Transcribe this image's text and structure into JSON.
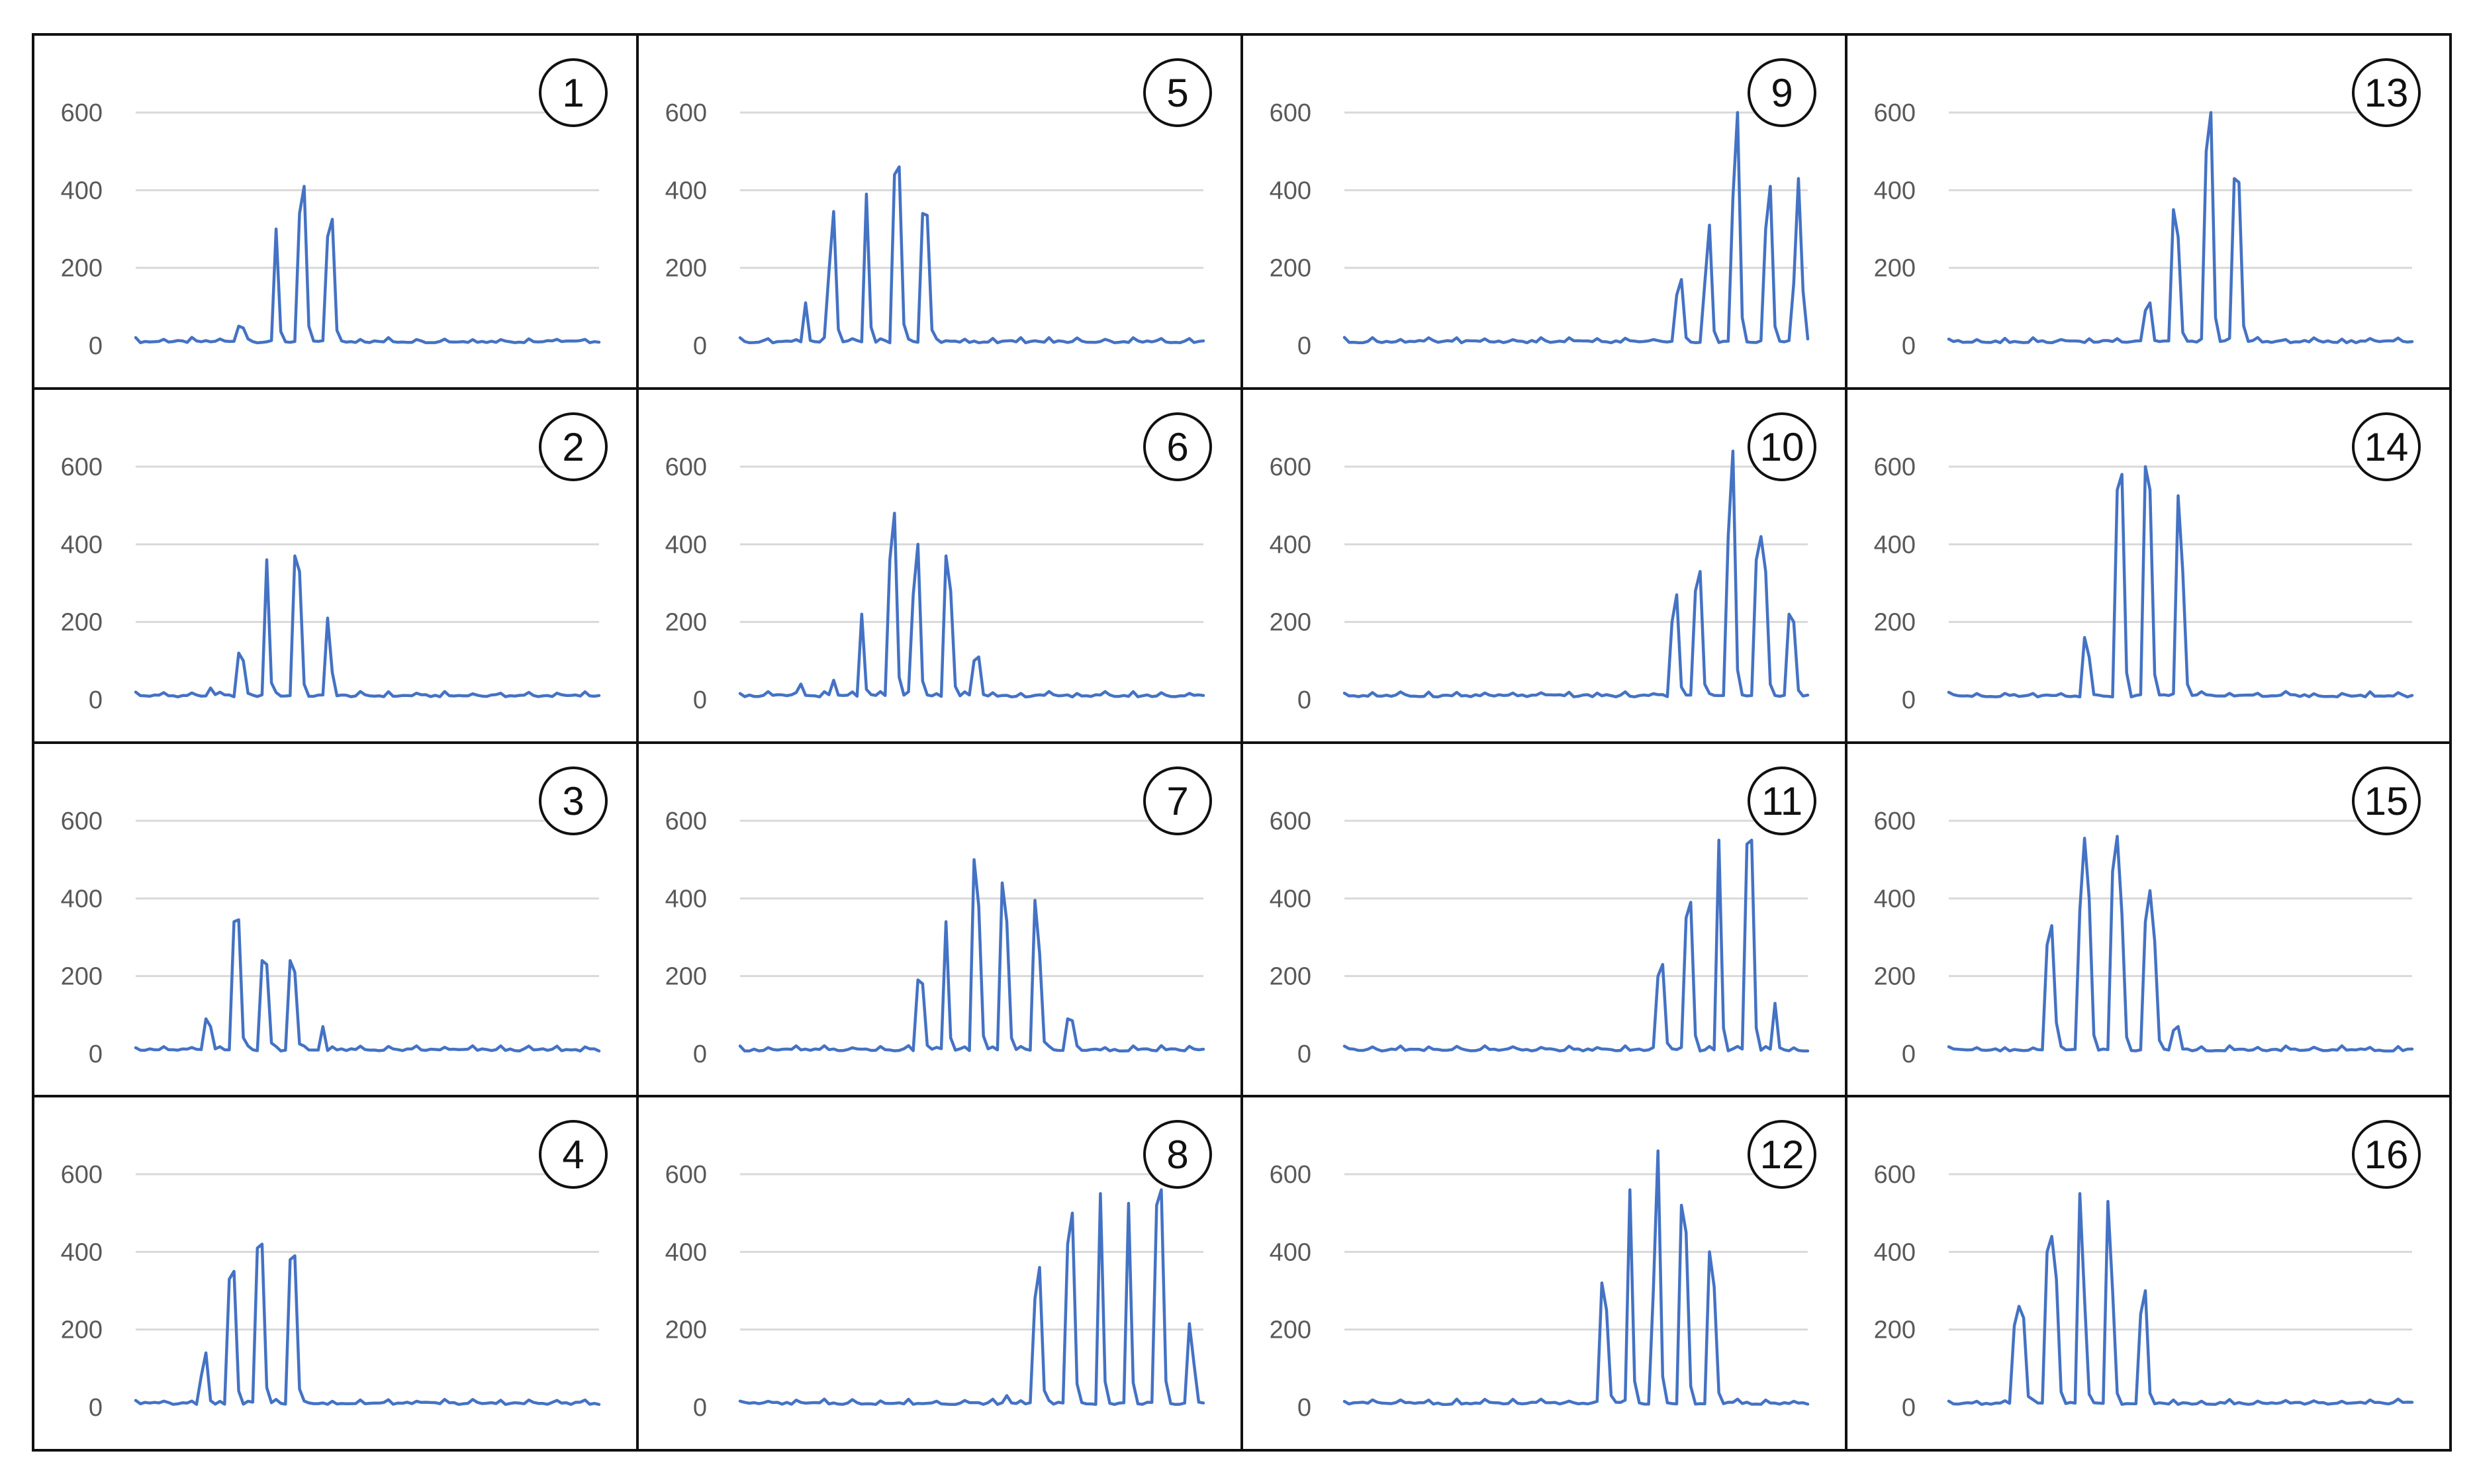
{
  "chart_data": {
    "type": "line",
    "layout": "4x4 small multiples, column-major panel numbering",
    "line_color": "#4472c4",
    "grid": true,
    "legend": "none",
    "x_samples": 100,
    "panels": [
      {
        "label": "1",
        "ylim": [
          0,
          700
        ],
        "yticks": [
          "0",
          "200",
          "400",
          "600"
        ],
        "baseline": 10,
        "peaks": [
          [
            22,
            50
          ],
          [
            23,
            45
          ],
          [
            30,
            300
          ],
          [
            35,
            340
          ],
          [
            36,
            410
          ],
          [
            41,
            280
          ],
          [
            42,
            325
          ]
        ]
      },
      {
        "label": "2",
        "ylim": [
          0,
          700
        ],
        "yticks": [
          "0",
          "200",
          "400",
          "600"
        ],
        "baseline": 10,
        "peaks": [
          [
            16,
            30
          ],
          [
            22,
            120
          ],
          [
            23,
            100
          ],
          [
            28,
            360
          ],
          [
            34,
            370
          ],
          [
            35,
            330
          ],
          [
            41,
            210
          ],
          [
            42,
            70
          ]
        ]
      },
      {
        "label": "3",
        "ylim": [
          0,
          700
        ],
        "yticks": [
          "0",
          "200",
          "400",
          "600"
        ],
        "baseline": 10,
        "peaks": [
          [
            15,
            90
          ],
          [
            16,
            70
          ],
          [
            21,
            340
          ],
          [
            22,
            345
          ],
          [
            27,
            240
          ],
          [
            28,
            230
          ],
          [
            33,
            240
          ],
          [
            34,
            210
          ],
          [
            40,
            70
          ]
        ]
      },
      {
        "label": "4",
        "ylim": [
          0,
          700
        ],
        "yticks": [
          "0",
          "200",
          "400",
          "600"
        ],
        "baseline": 10,
        "peaks": [
          [
            14,
            80
          ],
          [
            15,
            140
          ],
          [
            20,
            330
          ],
          [
            21,
            350
          ],
          [
            26,
            410
          ],
          [
            27,
            420
          ],
          [
            33,
            380
          ],
          [
            34,
            390
          ]
        ]
      },
      {
        "label": "5",
        "ylim": [
          0,
          700
        ],
        "yticks": [
          "0",
          "200",
          "400",
          "600"
        ],
        "baseline": 10,
        "peaks": [
          [
            14,
            110
          ],
          [
            19,
            190
          ],
          [
            20,
            345
          ],
          [
            27,
            390
          ],
          [
            33,
            440
          ],
          [
            34,
            460
          ],
          [
            39,
            340
          ],
          [
            40,
            335
          ]
        ]
      },
      {
        "label": "6",
        "ylim": [
          0,
          700
        ],
        "yticks": [
          "0",
          "200",
          "400",
          "600"
        ],
        "baseline": 10,
        "peaks": [
          [
            13,
            40
          ],
          [
            20,
            50
          ],
          [
            26,
            220
          ],
          [
            32,
            360
          ],
          [
            33,
            480
          ],
          [
            37,
            270
          ],
          [
            38,
            400
          ],
          [
            44,
            370
          ],
          [
            45,
            280
          ],
          [
            50,
            100
          ],
          [
            51,
            110
          ]
        ]
      },
      {
        "label": "7",
        "ylim": [
          0,
          700
        ],
        "yticks": [
          "0",
          "200",
          "400",
          "600"
        ],
        "baseline": 10,
        "peaks": [
          [
            38,
            190
          ],
          [
            39,
            180
          ],
          [
            44,
            340
          ],
          [
            50,
            500
          ],
          [
            51,
            380
          ],
          [
            56,
            440
          ],
          [
            57,
            340
          ],
          [
            63,
            395
          ],
          [
            64,
            260
          ],
          [
            70,
            90
          ],
          [
            71,
            85
          ]
        ]
      },
      {
        "label": "8",
        "ylim": [
          0,
          700
        ],
        "yticks": [
          "0",
          "200",
          "400",
          "600"
        ],
        "baseline": 10,
        "peaks": [
          [
            57,
            30
          ],
          [
            63,
            280
          ],
          [
            64,
            360
          ],
          [
            70,
            420
          ],
          [
            71,
            500
          ],
          [
            77,
            550
          ],
          [
            83,
            525
          ],
          [
            89,
            520
          ],
          [
            90,
            560
          ],
          [
            96,
            215
          ],
          [
            97,
            110
          ]
        ]
      },
      {
        "label": "9",
        "ylim": [
          0,
          700
        ],
        "yticks": [
          "0",
          "200",
          "400",
          "600"
        ],
        "baseline": 10,
        "peaks": [
          [
            71,
            130
          ],
          [
            72,
            170
          ],
          [
            77,
            160
          ],
          [
            78,
            310
          ],
          [
            83,
            380
          ],
          [
            84,
            600
          ],
          [
            90,
            300
          ],
          [
            91,
            410
          ],
          [
            96,
            160
          ],
          [
            97,
            430
          ],
          [
            98,
            140
          ]
        ]
      },
      {
        "label": "10",
        "ylim": [
          0,
          700
        ],
        "yticks": [
          "0",
          "200",
          "400",
          "600"
        ],
        "baseline": 10,
        "peaks": [
          [
            70,
            200
          ],
          [
            71,
            270
          ],
          [
            75,
            280
          ],
          [
            76,
            330
          ],
          [
            82,
            420
          ],
          [
            83,
            640
          ],
          [
            88,
            360
          ],
          [
            89,
            420
          ],
          [
            90,
            330
          ],
          [
            95,
            220
          ],
          [
            96,
            200
          ]
        ]
      },
      {
        "label": "11",
        "ylim": [
          0,
          700
        ],
        "yticks": [
          "0",
          "200",
          "400",
          "600"
        ],
        "baseline": 10,
        "peaks": [
          [
            67,
            200
          ],
          [
            68,
            230
          ],
          [
            73,
            350
          ],
          [
            74,
            390
          ],
          [
            80,
            550
          ],
          [
            86,
            540
          ],
          [
            87,
            550
          ],
          [
            92,
            130
          ]
        ]
      },
      {
        "label": "12",
        "ylim": [
          0,
          700
        ],
        "yticks": [
          "0",
          "200",
          "400",
          "600"
        ],
        "baseline": 10,
        "peaks": [
          [
            55,
            320
          ],
          [
            56,
            250
          ],
          [
            61,
            560
          ],
          [
            66,
            300
          ],
          [
            67,
            660
          ],
          [
            72,
            520
          ],
          [
            73,
            450
          ],
          [
            78,
            400
          ],
          [
            79,
            310
          ]
        ]
      },
      {
        "label": "13",
        "ylim": [
          0,
          700
        ],
        "yticks": [
          "0",
          "200",
          "400",
          "600"
        ],
        "baseline": 10,
        "peaks": [
          [
            42,
            90
          ],
          [
            43,
            110
          ],
          [
            48,
            350
          ],
          [
            49,
            280
          ],
          [
            55,
            500
          ],
          [
            56,
            600
          ],
          [
            61,
            430
          ],
          [
            62,
            420
          ]
        ]
      },
      {
        "label": "14",
        "ylim": [
          0,
          700
        ],
        "yticks": [
          "0",
          "200",
          "400",
          "600"
        ],
        "baseline": 10,
        "peaks": [
          [
            29,
            160
          ],
          [
            30,
            110
          ],
          [
            36,
            540
          ],
          [
            37,
            580
          ],
          [
            42,
            600
          ],
          [
            43,
            540
          ],
          [
            49,
            525
          ],
          [
            50,
            330
          ]
        ]
      },
      {
        "label": "15",
        "ylim": [
          0,
          650
        ],
        "yticks": [
          "0",
          "200",
          "400",
          "600"
        ],
        "baseline": 10,
        "peaks": [
          [
            21,
            280
          ],
          [
            22,
            330
          ],
          [
            23,
            80
          ],
          [
            28,
            370
          ],
          [
            29,
            555
          ],
          [
            30,
            400
          ],
          [
            35,
            470
          ],
          [
            36,
            560
          ],
          [
            37,
            360
          ],
          [
            42,
            340
          ],
          [
            43,
            420
          ],
          [
            44,
            290
          ],
          [
            48,
            60
          ],
          [
            49,
            70
          ]
        ]
      },
      {
        "label": "16",
        "ylim": [
          0,
          700
        ],
        "yticks": [
          "0",
          "200",
          "400",
          "600"
        ],
        "baseline": 10,
        "peaks": [
          [
            14,
            210
          ],
          [
            15,
            260
          ],
          [
            16,
            230
          ],
          [
            21,
            400
          ],
          [
            22,
            440
          ],
          [
            23,
            330
          ],
          [
            28,
            550
          ],
          [
            29,
            280
          ],
          [
            34,
            530
          ],
          [
            35,
            300
          ],
          [
            41,
            240
          ],
          [
            42,
            300
          ]
        ]
      }
    ]
  }
}
